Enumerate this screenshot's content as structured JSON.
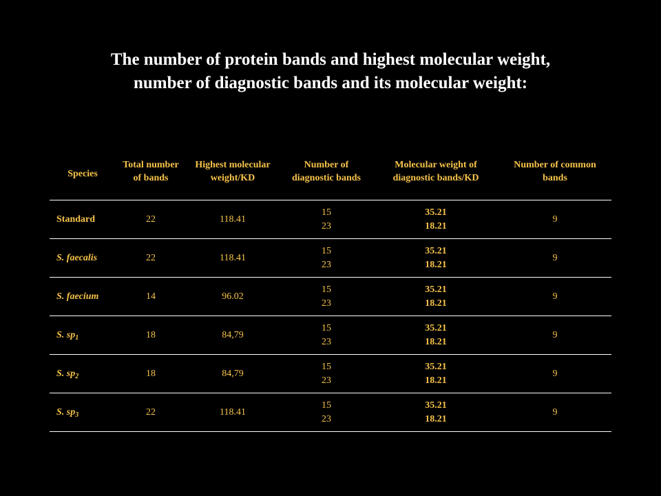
{
  "title": {
    "line1": "The number of protein bands and highest molecular weight,",
    "line2": "number of diagnostic bands and its molecular weight:"
  },
  "colors": {
    "background": "#000000",
    "title": "#ffffff",
    "table_text": "#f6c34a",
    "rules": "#ffffff"
  },
  "table": {
    "headers": [
      "Species",
      "Total number of bands",
      "Highest molecular weight/KD",
      "Number of diagnostic bands",
      "Molecular weight of diagnostic bands/KD",
      "Number of common bands"
    ],
    "rows": [
      {
        "species": "Standard",
        "species_sub": "",
        "total": "22",
        "highest": "118.41",
        "diag_1": "15",
        "diag_2": "23",
        "mw_1": "35.21",
        "mw_2": "18.21",
        "common": "9"
      },
      {
        "species": "S. faecalis",
        "species_sub": "",
        "total": "22",
        "highest": "118.41",
        "diag_1": "15",
        "diag_2": "23",
        "mw_1": "35.21",
        "mw_2": "18.21",
        "common": "9"
      },
      {
        "species": "S. faecium",
        "species_sub": "",
        "total": "14",
        "highest": "96.02",
        "diag_1": "15",
        "diag_2": "23",
        "mw_1": "35.21",
        "mw_2": "18.21",
        "common": "9"
      },
      {
        "species": "S. sp",
        "species_sub": "1",
        "total": "18",
        "highest": "84,79",
        "diag_1": "15",
        "diag_2": "23",
        "mw_1": "35.21",
        "mw_2": "18.21",
        "common": "9"
      },
      {
        "species": "S. sp",
        "species_sub": "2",
        "total": "18",
        "highest": "84,79",
        "diag_1": "15",
        "diag_2": "23",
        "mw_1": "35.21",
        "mw_2": "18.21",
        "common": "9"
      },
      {
        "species": "S. sp",
        "species_sub": "3",
        "total": "22",
        "highest": "118.41",
        "diag_1": "15",
        "diag_2": "23",
        "mw_1": "35.21",
        "mw_2": "18.21",
        "common": "9"
      }
    ]
  }
}
